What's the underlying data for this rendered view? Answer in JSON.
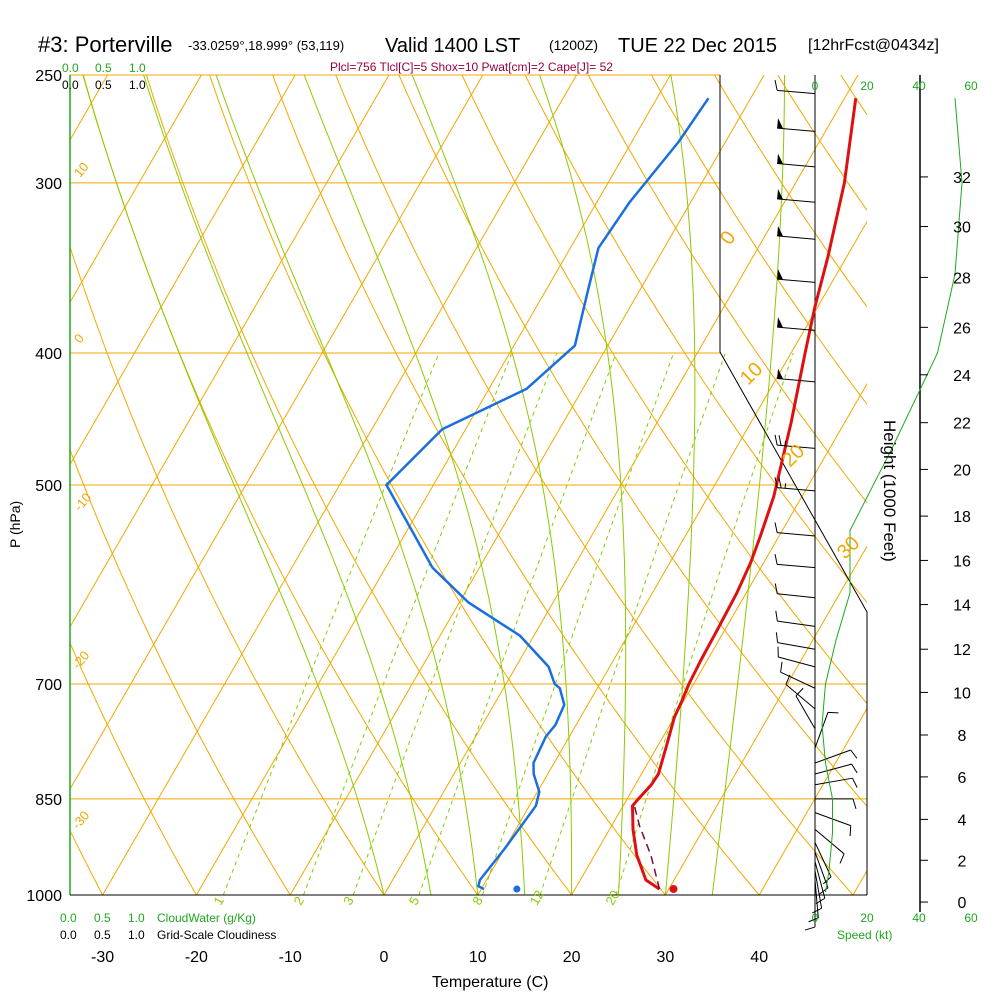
{
  "header": {
    "station": "#3: Porterville",
    "coords": "-33.0259°,18.999° (53,119)",
    "valid": "Valid 1400 LST",
    "utc": "(1200Z)",
    "date": "TUE 22 Dec 2015",
    "forecast": "[12hrFcst@0434z]",
    "indices": "Plcl=756 Tlcl[C]=5 Shox=10 Pwat[cm]=2 Cape[J]= 52"
  },
  "colors": {
    "temperature": "#dd1111",
    "dewpoint": "#1a6fe0",
    "parcel": "#7a0a3a",
    "isotherm_grid": "#f0a800",
    "mixing_ratio": "#88cc00",
    "green_text": "#1fa81f",
    "index_text": "#990044"
  },
  "chart_data": {
    "type": "line",
    "title": "#3: Porterville",
    "xlabel": "Temperature (C)",
    "ylabel": "P (hPa)",
    "y2label": "Height (1000 Feet)",
    "xlim": [
      -34,
      46
    ],
    "ylim": [
      1000,
      250
    ],
    "x_ticks": [
      "-30",
      "-20",
      "-10",
      "0",
      "10",
      "20",
      "30",
      "40"
    ],
    "pressure_ticks": [
      "250",
      "300",
      "400",
      "500",
      "700",
      "850",
      "1000"
    ],
    "pressure_tick_values": [
      250,
      300,
      400,
      500,
      700,
      850,
      1000
    ],
    "height_ticks": [
      "0",
      "2",
      "4",
      "6",
      "8",
      "10",
      "12",
      "14",
      "16",
      "18",
      "20",
      "22",
      "24",
      "26",
      "28",
      "30",
      "32"
    ],
    "cloud_scale_labels": [
      "0.0",
      "0.5",
      "1.0"
    ],
    "cloud_top_labels": [
      "0.0",
      "0.5",
      "1.0"
    ],
    "cloudwater_label": "CloudWater (g/Kg)",
    "gridscale_label": "Grid-Scale Cloudiness",
    "speed_label": "Speed (kt)",
    "speed_ticks": [
      "0",
      "20",
      "40",
      "60"
    ],
    "isotherm_labels": [
      "10",
      "0",
      "-10",
      "-20",
      "-30",
      "0",
      "10",
      "20",
      "30"
    ],
    "mixing_ratio_labels": [
      "1",
      "2",
      "3",
      "5",
      "8",
      "12",
      "20"
    ],
    "mixing_ratio_values": [
      1,
      2,
      3,
      5,
      8,
      12,
      20
    ],
    "series": [
      {
        "name": "Temperature",
        "points": [
          [
            29.0,
            990
          ],
          [
            27.0,
            975
          ],
          [
            24.5,
            935
          ],
          [
            22.5,
            895
          ],
          [
            21.0,
            860
          ],
          [
            21.2,
            850
          ],
          [
            21.7,
            830
          ],
          [
            21.8,
            815
          ],
          [
            21.0,
            780
          ],
          [
            20.0,
            740
          ],
          [
            19.8,
            720
          ],
          [
            19.5,
            700
          ],
          [
            19.3,
            670
          ],
          [
            19.2,
            640
          ],
          [
            19.0,
            600
          ],
          [
            18.6,
            570
          ],
          [
            18.0,
            545
          ],
          [
            17.0,
            510
          ],
          [
            14.3,
            450
          ],
          [
            11.5,
            400
          ],
          [
            9.7,
            370
          ],
          [
            8.0,
            340
          ],
          [
            5.2,
            300
          ],
          [
            1.2,
            260
          ]
        ]
      },
      {
        "name": "Dewpoint",
        "points": [
          [
            10.3,
            990
          ],
          [
            9.5,
            985
          ],
          [
            9.3,
            975
          ],
          [
            10.0,
            925
          ],
          [
            10.7,
            860
          ],
          [
            10.2,
            840
          ],
          [
            8.5,
            815
          ],
          [
            7.8,
            800
          ],
          [
            7.5,
            765
          ],
          [
            7.8,
            750
          ],
          [
            7.5,
            725
          ],
          [
            6.0,
            705
          ],
          [
            5.2,
            700
          ],
          [
            3.5,
            680
          ],
          [
            -1.5,
            645
          ],
          [
            -9.0,
            610
          ],
          [
            -15.0,
            575
          ],
          [
            -25.0,
            500
          ],
          [
            -22.5,
            455
          ],
          [
            -16.0,
            425
          ],
          [
            -13.5,
            395
          ],
          [
            -15.5,
            360
          ],
          [
            -17.0,
            335
          ],
          [
            -16.5,
            310
          ],
          [
            -15.0,
            280
          ],
          [
            -14.5,
            260
          ]
        ]
      },
      {
        "name": "Parcel",
        "points": [
          [
            29.0,
            990
          ],
          [
            26.0,
            935
          ],
          [
            23.0,
            890
          ],
          [
            21.2,
            860
          ]
        ]
      }
    ],
    "surface_temp": 30.5,
    "surface_dewpoint": 13.8,
    "wind_barbs": [
      {
        "p": 990,
        "dir": 180,
        "speed": 10
      },
      {
        "p": 975,
        "dir": 175,
        "speed": 10
      },
      {
        "p": 960,
        "dir": 170,
        "speed": 10
      },
      {
        "p": 945,
        "dir": 165,
        "speed": 10
      },
      {
        "p": 930,
        "dir": 160,
        "speed": 10
      },
      {
        "p": 915,
        "dir": 155,
        "speed": 10
      },
      {
        "p": 895,
        "dir": 130,
        "speed": 10
      },
      {
        "p": 870,
        "dir": 110,
        "speed": 10
      },
      {
        "p": 850,
        "dir": 90,
        "speed": 10
      },
      {
        "p": 830,
        "dir": 80,
        "speed": 10
      },
      {
        "p": 815,
        "dir": 75,
        "speed": 10
      },
      {
        "p": 800,
        "dir": 70,
        "speed": 10
      },
      {
        "p": 780,
        "dir": 20,
        "speed": 10
      },
      {
        "p": 755,
        "dir": 330,
        "speed": 10
      },
      {
        "p": 730,
        "dir": 310,
        "speed": 10
      },
      {
        "p": 705,
        "dir": 295,
        "speed": 10
      },
      {
        "p": 680,
        "dir": 285,
        "speed": 10
      },
      {
        "p": 660,
        "dir": 280,
        "speed": 10
      },
      {
        "p": 635,
        "dir": 278,
        "speed": 10
      },
      {
        "p": 605,
        "dir": 276,
        "speed": 10
      },
      {
        "p": 575,
        "dir": 275,
        "speed": 10
      },
      {
        "p": 545,
        "dir": 275,
        "speed": 10
      },
      {
        "p": 505,
        "dir": 275,
        "speed": 25
      },
      {
        "p": 470,
        "dir": 275,
        "speed": 25
      },
      {
        "p": 420,
        "dir": 275,
        "speed": 50
      },
      {
        "p": 385,
        "dir": 275,
        "speed": 50
      },
      {
        "p": 355,
        "dir": 275,
        "speed": 50
      },
      {
        "p": 330,
        "dir": 275,
        "speed": 50
      },
      {
        "p": 310,
        "dir": 275,
        "speed": 50
      },
      {
        "p": 292,
        "dir": 275,
        "speed": 50
      },
      {
        "p": 275,
        "dir": 275,
        "speed": 50
      },
      {
        "p": 258,
        "dir": 275,
        "speed": 10
      }
    ],
    "wind_speed_profile": [
      [
        3,
        995
      ],
      [
        4,
        960
      ],
      [
        5,
        900
      ],
      [
        5,
        850
      ],
      [
        3,
        800
      ],
      [
        2,
        750
      ],
      [
        3,
        700
      ],
      [
        6,
        650
      ],
      [
        10,
        600
      ],
      [
        10,
        540
      ],
      [
        22,
        470
      ],
      [
        35,
        400
      ],
      [
        40,
        350
      ],
      [
        42,
        300
      ],
      [
        40,
        260
      ]
    ],
    "height_tick_pressures": [
      1012,
      943,
      880,
      819,
      763,
      710,
      660,
      612,
      568,
      527,
      487,
      450,
      415,
      383,
      352,
      323,
      297
    ],
    "speed_tick_values": [
      0,
      20,
      40,
      60
    ]
  }
}
